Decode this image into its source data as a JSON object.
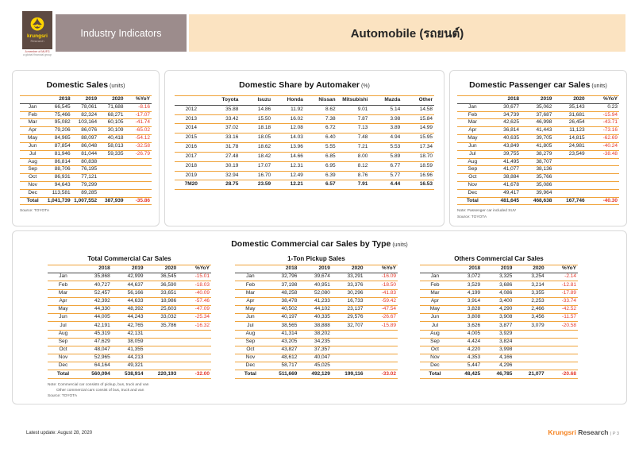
{
  "header": {
    "logo_brand": "krungsri",
    "logo_sub": "Research",
    "member_line1": "A member of MUFG",
    "member_line2": "a global financial group",
    "section_title": "Industry Indicators",
    "page_title": "Automobile (รถยนต์)"
  },
  "colors": {
    "accent_orange": "#F0A33A",
    "negative_red": "#E4392C",
    "header_taupe": "#9C8C8C",
    "header_cream": "#FBE3C1",
    "brand_brown": "#5D4A42",
    "brand_yellow": "#FFD500",
    "krungsri_orange": "#F5821F"
  },
  "panels": {
    "domestic_sales": {
      "title": "Domestic Sales",
      "title_suffix": " (units)",
      "columns": [
        "",
        "2018",
        "2019",
        "2020",
        "%YoY"
      ],
      "rows": [
        [
          "Jan",
          "66,545",
          "78,061",
          "71,688",
          "-8.16"
        ],
        [
          "Feb",
          "75,466",
          "82,324",
          "68,271",
          "-17.07"
        ],
        [
          "Mar",
          "95,082",
          "103,164",
          "60,105",
          "-41.74"
        ],
        [
          "Apr",
          "79,206",
          "86,076",
          "30,109",
          "-65.02"
        ],
        [
          "May",
          "84,965",
          "88,097",
          "40,418",
          "-54.12"
        ],
        [
          "Jun",
          "87,854",
          "86,048",
          "58,013",
          "-32.58"
        ],
        [
          "Jul",
          "81,946",
          "81,044",
          "59,335",
          "-26.79"
        ],
        [
          "Aug",
          "86,814",
          "80,838",
          "",
          ""
        ],
        [
          "Sep",
          "88,706",
          "76,195",
          "",
          ""
        ],
        [
          "Oct",
          "86,931",
          "77,121",
          "",
          ""
        ],
        [
          "Nov",
          "94,643",
          "79,299",
          "",
          ""
        ],
        [
          "Dec",
          "113,581",
          "89,285",
          "",
          ""
        ],
        [
          "Total",
          "1,041,739",
          "1,007,552",
          "387,939",
          "-35.86"
        ]
      ],
      "source": "Source: TOYOTA"
    },
    "share": {
      "title": "Domestic Share by Automaker",
      "title_suffix": " (%)",
      "columns": [
        "",
        "Toyota",
        "Isuzu",
        "Honda",
        "Nissan",
        "Mitsubishi",
        "Mazda",
        "Other"
      ],
      "rows": [
        [
          "2012",
          "35.88",
          "14.86",
          "11.92",
          "8.62",
          "9.01",
          "5.14",
          "14.58"
        ],
        [
          "2013",
          "33.42",
          "15.50",
          "16.02",
          "7.38",
          "7.87",
          "3.98",
          "15.84"
        ],
        [
          "2014",
          "37.02",
          "18.18",
          "12.08",
          "6.72",
          "7.13",
          "3.89",
          "14.99"
        ],
        [
          "2015",
          "33.16",
          "18.05",
          "14.03",
          "6.40",
          "7.48",
          "4.94",
          "15.95"
        ],
        [
          "2016",
          "31.78",
          "18.62",
          "13.96",
          "5.55",
          "7.21",
          "5.53",
          "17.34"
        ],
        [
          "2017",
          "27.48",
          "18.42",
          "14.66",
          "6.85",
          "8.00",
          "5.89",
          "18.70"
        ],
        [
          "2018",
          "30.19",
          "17.07",
          "12.31",
          "6.95",
          "8.12",
          "6.77",
          "18.59"
        ],
        [
          "2019",
          "32.94",
          "16.70",
          "12.49",
          "6.39",
          "8.76",
          "5.77",
          "16.96"
        ],
        [
          "7M20",
          "28.75",
          "23.59",
          "12.21",
          "6.57",
          "7.91",
          "4.44",
          "16.53"
        ]
      ]
    },
    "passenger": {
      "title": "Domestic Passenger car Sales",
      "title_suffix": " (units)",
      "columns": [
        "",
        "2018",
        "2019",
        "2020",
        "%YoY"
      ],
      "rows": [
        [
          "Jan",
          "30,677",
          "35,062",
          "35,143",
          "0.23"
        ],
        [
          "Feb",
          "34,739",
          "37,687",
          "31,681",
          "-15.94"
        ],
        [
          "Mar",
          "42,625",
          "46,998",
          "26,454",
          "-43.71"
        ],
        [
          "Apr",
          "36,814",
          "41,443",
          "11,123",
          "-73.16"
        ],
        [
          "May",
          "40,635",
          "39,705",
          "14,815",
          "-62.69"
        ],
        [
          "Jun",
          "43,849",
          "41,805",
          "24,981",
          "-40.24"
        ],
        [
          "Jul",
          "39,755",
          "38,279",
          "23,549",
          "-38.48"
        ],
        [
          "Aug",
          "41,495",
          "38,707",
          "",
          ""
        ],
        [
          "Sep",
          "41,077",
          "38,136",
          "",
          ""
        ],
        [
          "Oct",
          "38,884",
          "35,766",
          "",
          ""
        ],
        [
          "Nov",
          "41,678",
          "35,086",
          "",
          ""
        ],
        [
          "Dec",
          "49,417",
          "39,964",
          "",
          ""
        ],
        [
          "Total",
          "481,645",
          "468,638",
          "167,746",
          "-40.30"
        ]
      ],
      "note": "Note: Passenger car included SUV",
      "source": "Source: TOYOTA"
    },
    "commercial": {
      "title": "Domestic Commercial car Sales by Type",
      "title_suffix": " (units)",
      "notes": [
        "Note: Commercial car consists of pickup, bus, truck and van",
        "Other commercial cars consist of bus, truck and van",
        "Source: TOYOTA"
      ],
      "tables": {
        "total": {
          "title": "Total Commercial Car Sales",
          "columns": [
            "",
            "2018",
            "2019",
            "2020",
            "%YoY"
          ],
          "rows": [
            [
              "Jan",
              "35,868",
              "42,999",
              "36,545",
              "-15.01"
            ],
            [
              "Feb",
              "40,727",
              "44,637",
              "36,590",
              "-18.03"
            ],
            [
              "Mar",
              "52,457",
              "56,166",
              "33,651",
              "-40.09"
            ],
            [
              "Apr",
              "42,392",
              "44,633",
              "18,986",
              "-57.46"
            ],
            [
              "May",
              "44,330",
              "48,392",
              "25,603",
              "-47.09"
            ],
            [
              "Jun",
              "44,005",
              "44,243",
              "33,032",
              "-25.34"
            ],
            [
              "Jul",
              "42,191",
              "42,765",
              "35,786",
              "-16.32"
            ],
            [
              "Aug",
              "45,319",
              "42,131",
              "",
              ""
            ],
            [
              "Sep",
              "47,629",
              "38,059",
              "",
              ""
            ],
            [
              "Oct",
              "48,047",
              "41,355",
              "",
              ""
            ],
            [
              "Nov",
              "52,965",
              "44,213",
              "",
              ""
            ],
            [
              "Dec",
              "64,164",
              "49,321",
              "",
              ""
            ],
            [
              "Total",
              "560,094",
              "538,914",
              "220,193",
              "-32.00"
            ]
          ]
        },
        "pickup": {
          "title": "1-Ton Pickup Sales",
          "columns": [
            "",
            "2018",
            "2019",
            "2020",
            "%YoY"
          ],
          "rows": [
            [
              "Jan",
              "32,796",
              "39,674",
              "33,291",
              "-16.09"
            ],
            [
              "Feb",
              "37,198",
              "40,951",
              "33,376",
              "-18.50"
            ],
            [
              "Mar",
              "48,258",
              "52,080",
              "30,296",
              "-41.83"
            ],
            [
              "Apr",
              "38,478",
              "41,233",
              "16,733",
              "-59.42"
            ],
            [
              "May",
              "40,502",
              "44,102",
              "23,137",
              "-47.54"
            ],
            [
              "Jun",
              "40,197",
              "40,335",
              "29,576",
              "-26.67"
            ],
            [
              "Jul",
              "38,565",
              "38,888",
              "32,707",
              "-15.89"
            ],
            [
              "Aug",
              "41,314",
              "38,202",
              "",
              ""
            ],
            [
              "Sep",
              "43,205",
              "34,235",
              "",
              ""
            ],
            [
              "Oct",
              "43,827",
              "37,357",
              "",
              ""
            ],
            [
              "Nov",
              "48,612",
              "40,047",
              "",
              ""
            ],
            [
              "Dec",
              "58,717",
              "45,025",
              "",
              ""
            ],
            [
              "Total",
              "511,669",
              "492,129",
              "199,116",
              "-33.02"
            ]
          ]
        },
        "others": {
          "title": "Others Commercial Car Sales",
          "columns": [
            "",
            "2018",
            "2019",
            "2020",
            "%YoY"
          ],
          "rows": [
            [
              "Jan",
              "3,072",
              "3,325",
              "3,254",
              "-2.14"
            ],
            [
              "Feb",
              "3,529",
              "3,686",
              "3,214",
              "-12.81"
            ],
            [
              "Mar",
              "4,199",
              "4,086",
              "3,355",
              "-17.89"
            ],
            [
              "Apr",
              "3,914",
              "3,400",
              "2,253",
              "-33.74"
            ],
            [
              "May",
              "3,828",
              "4,290",
              "2,466",
              "-42.52"
            ],
            [
              "Jun",
              "3,808",
              "3,908",
              "3,456",
              "-11.57"
            ],
            [
              "Jul",
              "3,626",
              "3,877",
              "3,079",
              "-20.58"
            ],
            [
              "Aug",
              "4,005",
              "3,929",
              "",
              ""
            ],
            [
              "Sep",
              "4,424",
              "3,824",
              "",
              ""
            ],
            [
              "Oct",
              "4,220",
              "3,998",
              "",
              ""
            ],
            [
              "Nov",
              "4,353",
              "4,166",
              "",
              ""
            ],
            [
              "Dec",
              "5,447",
              "4,296",
              "",
              ""
            ],
            [
              "Total",
              "48,425",
              "46,785",
              "21,077",
              "-20.68"
            ]
          ]
        }
      }
    }
  },
  "footer": {
    "latest_update": "Latest update: August 28, 2020",
    "brand1": "Krungsri",
    "brand2": "Research",
    "page_no": "| P 3"
  }
}
